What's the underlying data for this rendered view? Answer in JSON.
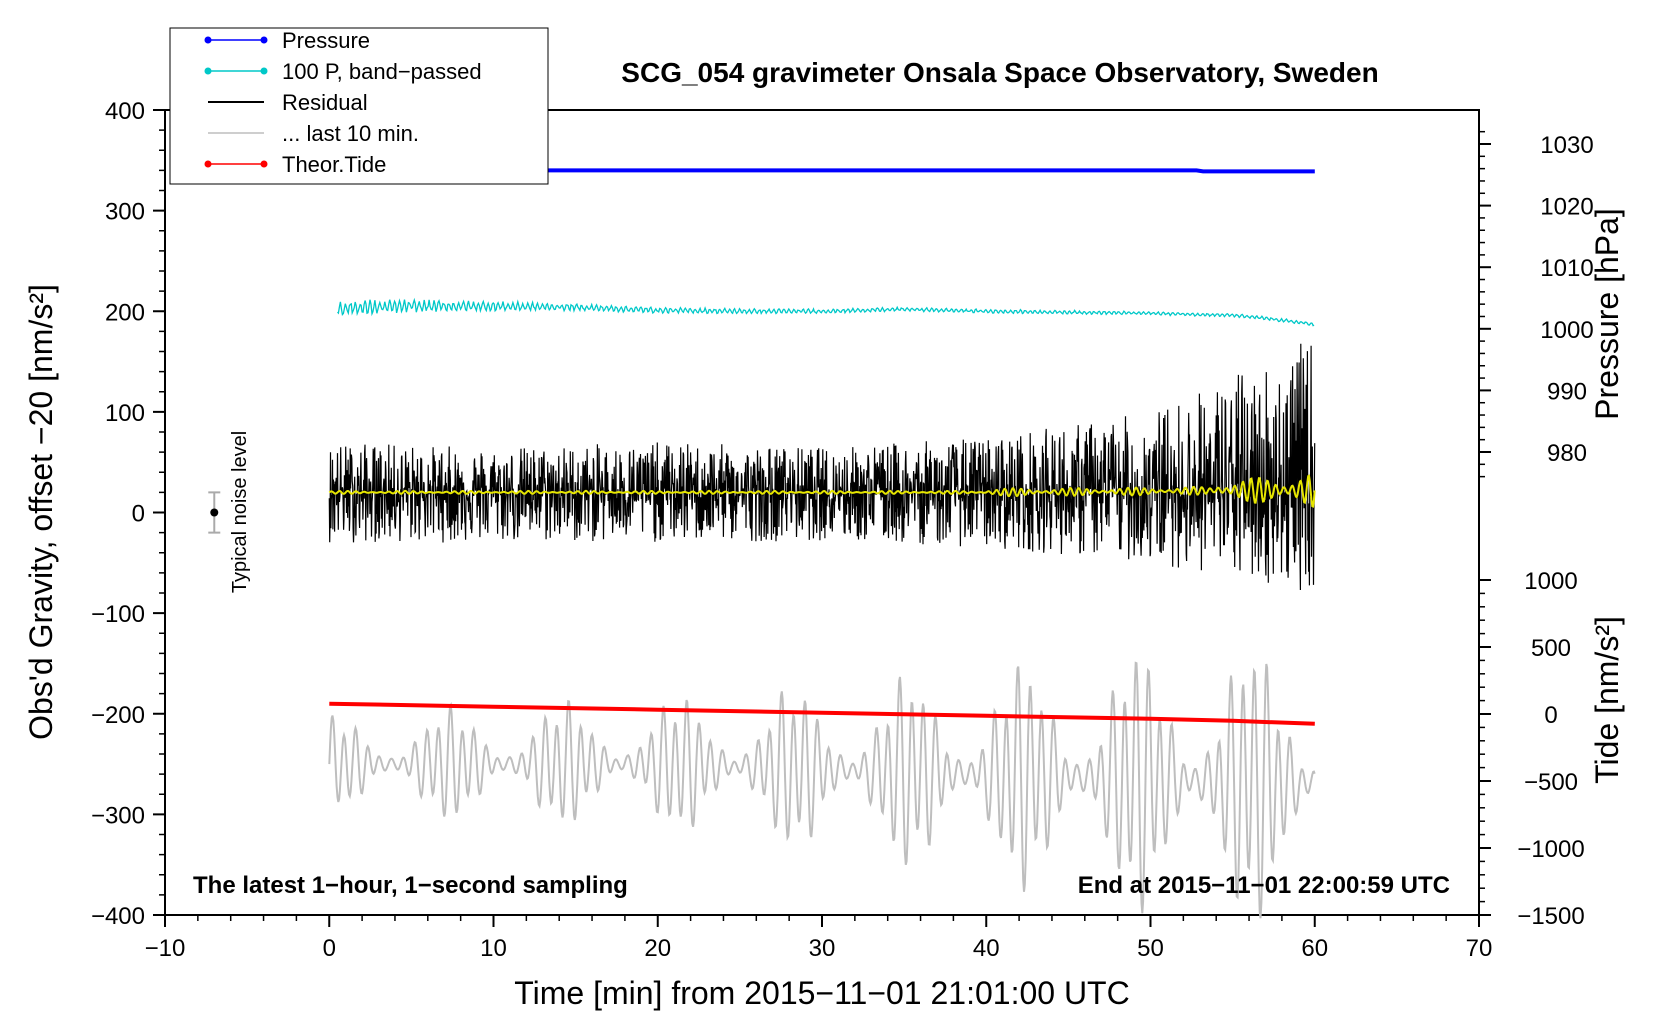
{
  "chart_data": {
    "type": "line",
    "title": "SCG_054 gravimeter Onsala Space Observatory, Sweden",
    "xlabel": "Time [min] from 2015−11−01 21:01:00 UTC",
    "ylabel": "Obs'd Gravity, offset −20 [nm/s²]",
    "ylabel_right_top": "Pressure [hPa]",
    "ylabel_right_bottom": "Tide [nm/s²]",
    "xlim": [
      -10,
      70
    ],
    "ylim": [
      -400,
      400
    ],
    "x_ticks": [
      "−10",
      "0",
      "10",
      "20",
      "30",
      "40",
      "50",
      "60",
      "70"
    ],
    "y_ticks": [
      "400",
      "300",
      "200",
      "100",
      "0",
      "−100",
      "−200",
      "−300",
      "−400"
    ],
    "pressure_axis": {
      "ticks": [
        "1030",
        "1020",
        "1010",
        "1000",
        "990",
        "980"
      ],
      "tick_values": [
        1030,
        1020,
        1010,
        1000,
        990,
        980
      ]
    },
    "tide_axis": {
      "ticks": [
        "1000",
        "500",
        "0",
        "−500",
        "−1000",
        "−1500"
      ],
      "tick_values": [
        1000,
        500,
        0,
        -500,
        -1000,
        -1500
      ]
    },
    "legend": [
      {
        "label": "Pressure",
        "color": "#0000ff",
        "marker": true
      },
      {
        "label": "100 P, band−passed",
        "color": "#00c8c8",
        "marker": true
      },
      {
        "label": "Residual",
        "color": "#000000",
        "marker": false
      },
      {
        "label": "... last 10 min.",
        "color": "#bebebe",
        "marker": false
      },
      {
        "label": "Theor.Tide",
        "color": "#ff0000",
        "marker": true
      }
    ],
    "annotations": {
      "left": "The latest 1−hour, 1−second sampling",
      "right": "End at 2015−11−01 22:00:59 UTC",
      "noise": "Typical noise level"
    },
    "series": [
      {
        "name": "Pressure",
        "color": "#0000ff",
        "x": [
          0,
          10,
          20,
          30,
          40,
          50,
          52.8,
          53.2,
          60
        ],
        "values": [
          340,
          340,
          340,
          340,
          340,
          340,
          340,
          339,
          339
        ]
      },
      {
        "name": "100 P, band-passed",
        "color": "#00c8c8",
        "x": [
          0.5,
          5,
          10,
          15,
          20,
          25,
          30,
          35,
          40,
          45,
          50,
          55,
          57,
          60
        ],
        "values": [
          203,
          205,
          205,
          204,
          201,
          200,
          200,
          202,
          200,
          199,
          198,
          196,
          193,
          187
        ]
      },
      {
        "name": "Residual",
        "color": "#000000",
        "x": [
          0,
          60
        ],
        "values": [
          20,
          20
        ],
        "amplitude_min": [
          -30,
          -30,
          -30,
          -28,
          -35,
          -50,
          -80
        ],
        "amplitude_max": [
          70,
          65,
          70,
          65,
          75,
          100,
          175
        ],
        "amplitude_x": [
          0,
          10,
          20,
          30,
          40,
          50,
          60
        ]
      },
      {
        "name": "Residual smoothed",
        "color": "#e6e600",
        "x": [
          0,
          40,
          50,
          55,
          60
        ],
        "values": [
          20,
          20,
          21,
          22,
          22
        ]
      },
      {
        "name": "... last 10 min.",
        "color": "#bebebe",
        "x": [
          0,
          10,
          20,
          30,
          40,
          50,
          60
        ],
        "values": [
          -250,
          -250,
          -250,
          -255,
          -260,
          -265,
          -270
        ],
        "amplitude": [
          40,
          50,
          55,
          70,
          90,
          110,
          120
        ]
      },
      {
        "name": "Theor.Tide",
        "color": "#ff0000",
        "x": [
          0,
          10,
          20,
          30,
          40,
          50,
          55,
          60
        ],
        "values": [
          -190,
          -193,
          -196,
          -199,
          -202,
          -205,
          -207,
          -210
        ]
      }
    ],
    "noise_bar": {
      "x": -7,
      "y": 0,
      "low": -20,
      "high": 20
    }
  }
}
